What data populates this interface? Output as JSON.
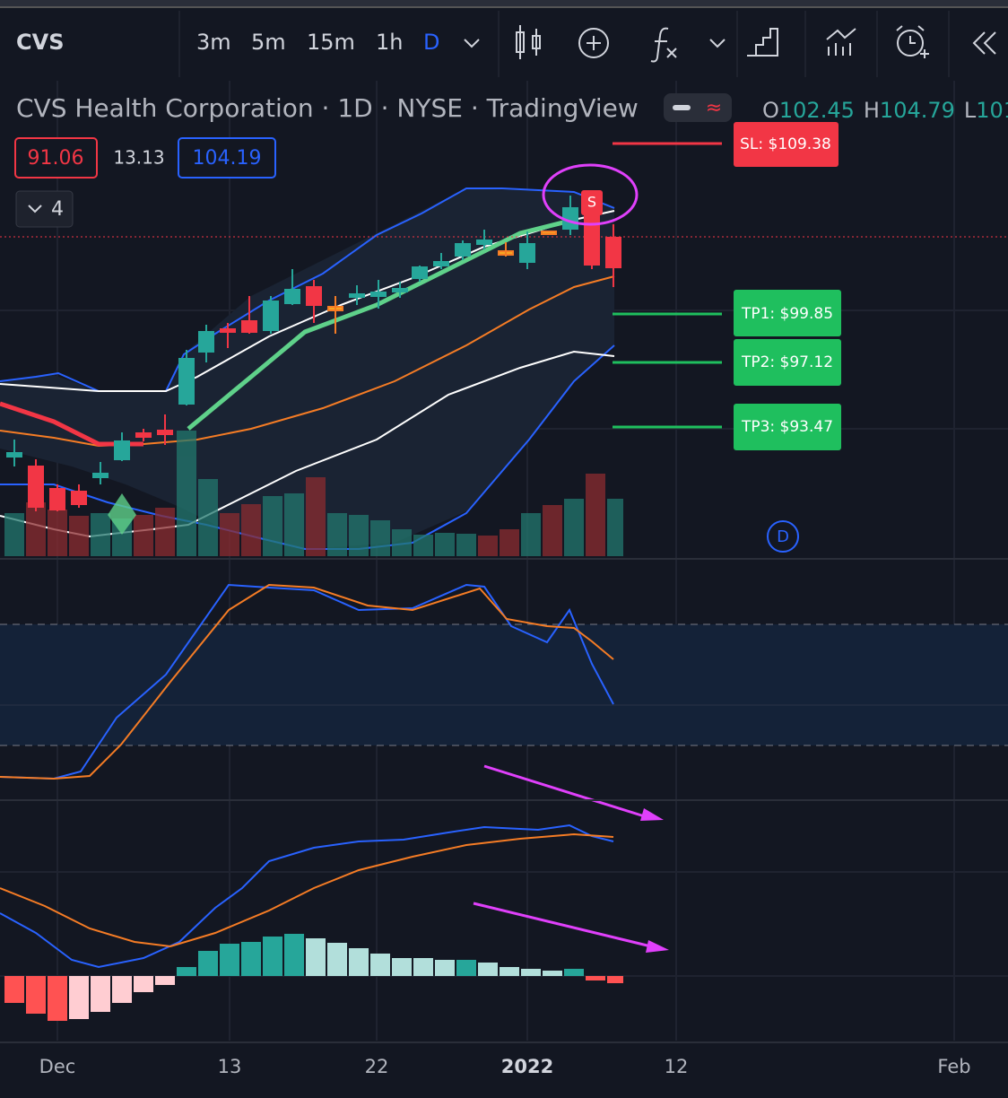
{
  "toolbar": {
    "symbol": "CVS",
    "intervals": [
      "3m",
      "5m",
      "15m",
      "1h",
      "D"
    ]
  },
  "header": {
    "title": "CVS Health Corporation · 1D · NYSE · TradingView",
    "ohlc": [
      {
        "key": "O",
        "value": "102.45"
      },
      {
        "key": "H",
        "value": "104.79"
      },
      {
        "key": "L",
        "value": "101"
      }
    ]
  },
  "badges": [
    "91.06",
    "13.13",
    "104.19"
  ],
  "collapse": "4",
  "levels": [
    "SL: $109.38",
    "TP1: $99.85",
    "TP2: $97.12",
    "TP3: $93.47"
  ],
  "signal": "S",
  "dividend": "D",
  "x_axis": [
    "Dec",
    "13",
    "22",
    "2022",
    "12",
    "Feb"
  ]
}
